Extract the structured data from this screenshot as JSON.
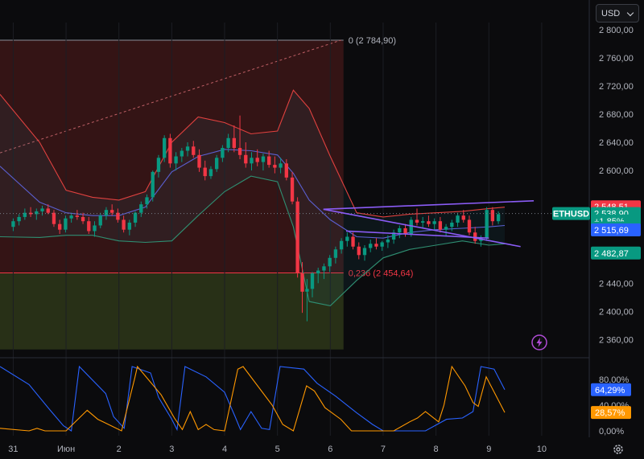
{
  "toolbar": {
    "currency_label": "USD",
    "currency_icon": "chevron-down-icon",
    "settings_icon": "gear-icon",
    "alert_icon": "lightning-icon"
  },
  "colors": {
    "bg": "#0b0b0d",
    "up": "#089981",
    "down": "#f23645",
    "fib_top_zone": "#3c1618",
    "fib_bottom_zone": "#2b3418",
    "bb_line": "#e0413f",
    "bb_lower": "#2f8f72",
    "ma": "#5b5fd0",
    "trend": "#8b5cf6",
    "stoch_blue": "#2962ff",
    "stoch_orange": "#ff9800"
  },
  "chart_data": [
    {
      "type": "candlestick",
      "symbol": "ETHUSD",
      "x_ticks": [
        {
          "label": "31",
          "day": 0
        },
        {
          "label": "Июн",
          "day": 1
        },
        {
          "label": "2",
          "day": 2
        },
        {
          "label": "3",
          "day": 3
        },
        {
          "label": "4",
          "day": 4
        },
        {
          "label": "5",
          "day": 5
        },
        {
          "label": "6",
          "day": 6
        },
        {
          "label": "7",
          "day": 7
        },
        {
          "label": "8",
          "day": 8
        },
        {
          "label": "9",
          "day": 9
        },
        {
          "label": "10",
          "day": 10
        }
      ],
      "y_ticks": [
        "2 800,00",
        "2 760,00",
        "2 720,00",
        "2 680,00",
        "2 640,00",
        "2 600,00",
        "2 440,00",
        "2 400,00",
        "2 360,00"
      ],
      "ylim": [
        2340,
        2810
      ],
      "xlim": [
        -0.25,
        10.9
      ],
      "candles": [
        [
          0.0,
          2520,
          2532,
          2514,
          2528
        ],
        [
          0.11,
          2528,
          2538,
          2522,
          2534
        ],
        [
          0.22,
          2534,
          2546,
          2530,
          2540
        ],
        [
          0.33,
          2540,
          2548,
          2534,
          2538
        ],
        [
          0.44,
          2538,
          2546,
          2530,
          2542
        ],
        [
          0.55,
          2542,
          2550,
          2536,
          2546
        ],
        [
          0.66,
          2546,
          2552,
          2538,
          2540
        ],
        [
          0.77,
          2540,
          2544,
          2520,
          2524
        ],
        [
          0.88,
          2524,
          2530,
          2510,
          2516
        ],
        [
          0.99,
          2516,
          2536,
          2512,
          2532
        ],
        [
          1.1,
          2532,
          2540,
          2526,
          2536
        ],
        [
          1.21,
          2536,
          2544,
          2530,
          2534
        ],
        [
          1.32,
          2534,
          2540,
          2524,
          2528
        ],
        [
          1.43,
          2528,
          2534,
          2510,
          2514
        ],
        [
          1.54,
          2514,
          2528,
          2506,
          2522
        ],
        [
          1.65,
          2522,
          2540,
          2518,
          2536
        ],
        [
          1.76,
          2536,
          2548,
          2530,
          2544
        ],
        [
          1.87,
          2544,
          2552,
          2536,
          2540
        ],
        [
          1.98,
          2540,
          2546,
          2526,
          2530
        ],
        [
          2.09,
          2530,
          2536,
          2512,
          2516
        ],
        [
          2.2,
          2516,
          2530,
          2508,
          2526
        ],
        [
          2.31,
          2526,
          2542,
          2520,
          2540
        ],
        [
          2.42,
          2540,
          2556,
          2534,
          2552
        ],
        [
          2.53,
          2552,
          2566,
          2546,
          2562
        ],
        [
          2.64,
          2562,
          2600,
          2556,
          2598
        ],
        [
          2.75,
          2598,
          2622,
          2590,
          2618
        ],
        [
          2.86,
          2618,
          2650,
          2612,
          2646
        ],
        [
          2.97,
          2646,
          2652,
          2604,
          2610
        ],
        [
          3.08,
          2610,
          2626,
          2600,
          2620
        ],
        [
          3.19,
          2620,
          2632,
          2612,
          2628
        ],
        [
          3.3,
          2628,
          2640,
          2620,
          2634
        ],
        [
          3.41,
          2634,
          2642,
          2618,
          2622
        ],
        [
          3.52,
          2622,
          2630,
          2598,
          2604
        ],
        [
          3.63,
          2604,
          2614,
          2586,
          2592
        ],
        [
          3.74,
          2592,
          2606,
          2588,
          2602
        ],
        [
          3.85,
          2602,
          2622,
          2598,
          2618
        ],
        [
          3.96,
          2618,
          2636,
          2612,
          2632
        ],
        [
          4.07,
          2632,
          2652,
          2626,
          2646
        ],
        [
          4.18,
          2646,
          2664,
          2626,
          2632
        ],
        [
          4.29,
          2632,
          2678,
          2616,
          2622
        ],
        [
          4.4,
          2622,
          2640,
          2604,
          2610
        ],
        [
          4.51,
          2610,
          2626,
          2600,
          2618
        ],
        [
          4.62,
          2618,
          2630,
          2606,
          2612
        ],
        [
          4.73,
          2612,
          2624,
          2600,
          2620
        ],
        [
          4.84,
          2620,
          2628,
          2604,
          2608
        ],
        [
          4.95,
          2608,
          2620,
          2596,
          2604
        ],
        [
          5.06,
          2604,
          2618,
          2596,
          2610
        ],
        [
          5.17,
          2610,
          2616,
          2586,
          2590
        ],
        [
          5.28,
          2590,
          2598,
          2552,
          2556
        ],
        [
          5.38,
          2556,
          2562,
          2448,
          2454
        ],
        [
          5.47,
          2454,
          2470,
          2398,
          2428
        ],
        [
          5.56,
          2428,
          2446,
          2386,
          2432
        ],
        [
          5.66,
          2432,
          2456,
          2420,
          2454
        ],
        [
          5.77,
          2454,
          2462,
          2440,
          2458
        ],
        [
          5.88,
          2458,
          2468,
          2446,
          2464
        ],
        [
          5.99,
          2464,
          2480,
          2456,
          2476
        ],
        [
          6.1,
          2476,
          2492,
          2468,
          2488
        ],
        [
          6.21,
          2488,
          2504,
          2482,
          2500
        ],
        [
          6.32,
          2500,
          2512,
          2492,
          2506
        ],
        [
          6.43,
          2506,
          2512,
          2488,
          2492
        ],
        [
          6.54,
          2492,
          2498,
          2474,
          2480
        ],
        [
          6.65,
          2480,
          2494,
          2472,
          2490
        ],
        [
          6.76,
          2490,
          2502,
          2484,
          2496
        ],
        [
          6.87,
          2496,
          2504,
          2488,
          2492
        ],
        [
          6.98,
          2492,
          2500,
          2486,
          2498
        ],
        [
          7.09,
          2498,
          2508,
          2490,
          2502
        ],
        [
          7.2,
          2502,
          2516,
          2496,
          2512
        ],
        [
          7.31,
          2512,
          2522,
          2504,
          2518
        ],
        [
          7.42,
          2518,
          2524,
          2506,
          2510
        ],
        [
          7.53,
          2510,
          2534,
          2506,
          2530
        ],
        [
          7.64,
          2530,
          2546,
          2522,
          2526
        ],
        [
          7.75,
          2526,
          2534,
          2518,
          2528
        ],
        [
          7.86,
          2528,
          2536,
          2520,
          2524
        ],
        [
          7.97,
          2524,
          2532,
          2516,
          2528
        ],
        [
          8.08,
          2528,
          2534,
          2512,
          2516
        ],
        [
          8.19,
          2516,
          2524,
          2506,
          2520
        ],
        [
          8.3,
          2520,
          2530,
          2514,
          2526
        ],
        [
          8.41,
          2526,
          2540,
          2520,
          2536
        ],
        [
          8.52,
          2536,
          2544,
          2526,
          2530
        ],
        [
          8.63,
          2530,
          2536,
          2508,
          2512
        ],
        [
          8.74,
          2512,
          2520,
          2496,
          2500
        ],
        [
          8.85,
          2500,
          2508,
          2492,
          2504
        ],
        [
          8.96,
          2504,
          2548,
          2500,
          2544
        ],
        [
          9.07,
          2544,
          2548,
          2522,
          2528
        ],
        [
          9.18,
          2528,
          2542,
          2524,
          2538
        ]
      ],
      "bollinger": {
        "x": [
          -0.25,
          0.5,
          1.0,
          1.5,
          2.0,
          2.5,
          3.0,
          3.5,
          4.0,
          4.5,
          5.0,
          5.3,
          5.6,
          6.0,
          6.5,
          7.0,
          7.5,
          8.0,
          8.5,
          9.0,
          9.3
        ],
        "upper": [
          2708,
          2640,
          2572,
          2562,
          2558,
          2570,
          2640,
          2676,
          2668,
          2652,
          2656,
          2714,
          2688,
          2620,
          2540,
          2534,
          2538,
          2540,
          2542,
          2546,
          2548
        ],
        "middle": [
          2606,
          2555,
          2540,
          2536,
          2536,
          2548,
          2598,
          2620,
          2630,
          2628,
          2622,
          2596,
          2558,
          2530,
          2506,
          2504,
          2512,
          2516,
          2518,
          2520,
          2522
        ],
        "lower": [
          2506,
          2505,
          2508,
          2508,
          2500,
          2498,
          2500,
          2536,
          2570,
          2592,
          2584,
          2520,
          2414,
          2408,
          2444,
          2476,
          2488,
          2494,
          2500,
          2494,
          2496
        ]
      },
      "fib_levels": [
        {
          "label": "0 (2 784,90)",
          "price": 2784.9
        },
        {
          "label": "0,236 (2 454,64)",
          "price": 2454.64
        }
      ],
      "fib_zone_bottom": 2346,
      "fib_x_range": [
        -0.25,
        6.25
      ],
      "dashed_trend": [
        [
          -0.25,
          2625
        ],
        [
          6.2,
          2784.9
        ]
      ],
      "triangle_lines": [
        [
          [
            5.87,
            2545
          ],
          [
            9.85,
            2557
          ]
        ],
        [
          [
            5.87,
            2545
          ],
          [
            9.6,
            2492
          ]
        ],
        [
          [
            6.3,
            2514
          ],
          [
            9.0,
            2504
          ]
        ]
      ],
      "current_price_line": 2538.9,
      "price_labels": [
        {
          "text": "2 548,51",
          "price": 2548.51,
          "color": "#f23645"
        },
        {
          "text": "2 538,90",
          "price": 2538.9,
          "color": "#089981"
        },
        {
          "text": "+1,85%",
          "price": 2528.5,
          "color": "#089981"
        },
        {
          "text": "01:56:22",
          "price": 2518.5,
          "color": "#089981"
        },
        {
          "text": "2 515,69",
          "price": 2515.69,
          "color": "#2962ff"
        },
        {
          "text": "2 482,87",
          "price": 2482.87,
          "color": "#089981"
        }
      ]
    },
    {
      "type": "line",
      "name": "stochastic",
      "y_ticks": [
        "80,00%",
        "40,00%",
        "0,00%"
      ],
      "ylim": [
        0,
        100
      ],
      "series": [
        {
          "color": "#2962ff",
          "label": "64,29%",
          "points": [
            [
              -0.25,
              100
            ],
            [
              0.3,
              72
            ],
            [
              0.7,
              32
            ],
            [
              0.95,
              8
            ],
            [
              1.1,
              0
            ],
            [
              1.25,
              100
            ],
            [
              1.75,
              58
            ],
            [
              1.9,
              22
            ],
            [
              2.1,
              4
            ],
            [
              2.25,
              100
            ],
            [
              2.6,
              90
            ],
            [
              2.75,
              52
            ],
            [
              3.0,
              18
            ],
            [
              3.1,
              2
            ],
            [
              3.25,
              100
            ],
            [
              3.65,
              84
            ],
            [
              4.0,
              60
            ],
            [
              4.2,
              22
            ],
            [
              4.3,
              2
            ],
            [
              4.5,
              30
            ],
            [
              4.7,
              4
            ],
            [
              4.85,
              2
            ],
            [
              5.05,
              100
            ],
            [
              5.5,
              96
            ],
            [
              5.75,
              74
            ],
            [
              6.1,
              54
            ],
            [
              6.5,
              28
            ],
            [
              6.8,
              10
            ],
            [
              7.0,
              0
            ],
            [
              7.8,
              0
            ],
            [
              8.2,
              18
            ],
            [
              8.5,
              20
            ],
            [
              8.7,
              30
            ],
            [
              8.85,
              100
            ],
            [
              9.1,
              96
            ],
            [
              9.3,
              64
            ]
          ]
        },
        {
          "color": "#ff9800",
          "label": "28,57%",
          "points": [
            [
              -0.25,
              4
            ],
            [
              0.3,
              0
            ],
            [
              0.45,
              4
            ],
            [
              0.6,
              0
            ],
            [
              1.0,
              0
            ],
            [
              1.4,
              32
            ],
            [
              1.6,
              18
            ],
            [
              2.05,
              0
            ],
            [
              2.3,
              82
            ],
            [
              2.35,
              100
            ],
            [
              2.8,
              56
            ],
            [
              3.05,
              20
            ],
            [
              3.2,
              2
            ],
            [
              3.35,
              30
            ],
            [
              3.5,
              2
            ],
            [
              3.65,
              10
            ],
            [
              3.8,
              2
            ],
            [
              4.0,
              0
            ],
            [
              4.25,
              96
            ],
            [
              4.35,
              100
            ],
            [
              4.9,
              40
            ],
            [
              5.1,
              10
            ],
            [
              5.3,
              0
            ],
            [
              5.55,
              70
            ],
            [
              5.7,
              62
            ],
            [
              5.9,
              36
            ],
            [
              6.2,
              18
            ],
            [
              6.4,
              0
            ],
            [
              7.2,
              0
            ],
            [
              7.5,
              14
            ],
            [
              7.65,
              20
            ],
            [
              7.8,
              30
            ],
            [
              8.05,
              14
            ],
            [
              8.15,
              40
            ],
            [
              8.3,
              100
            ],
            [
              8.55,
              70
            ],
            [
              8.7,
              44
            ],
            [
              8.8,
              38
            ],
            [
              8.95,
              84
            ],
            [
              9.3,
              28.57
            ]
          ]
        }
      ]
    }
  ]
}
